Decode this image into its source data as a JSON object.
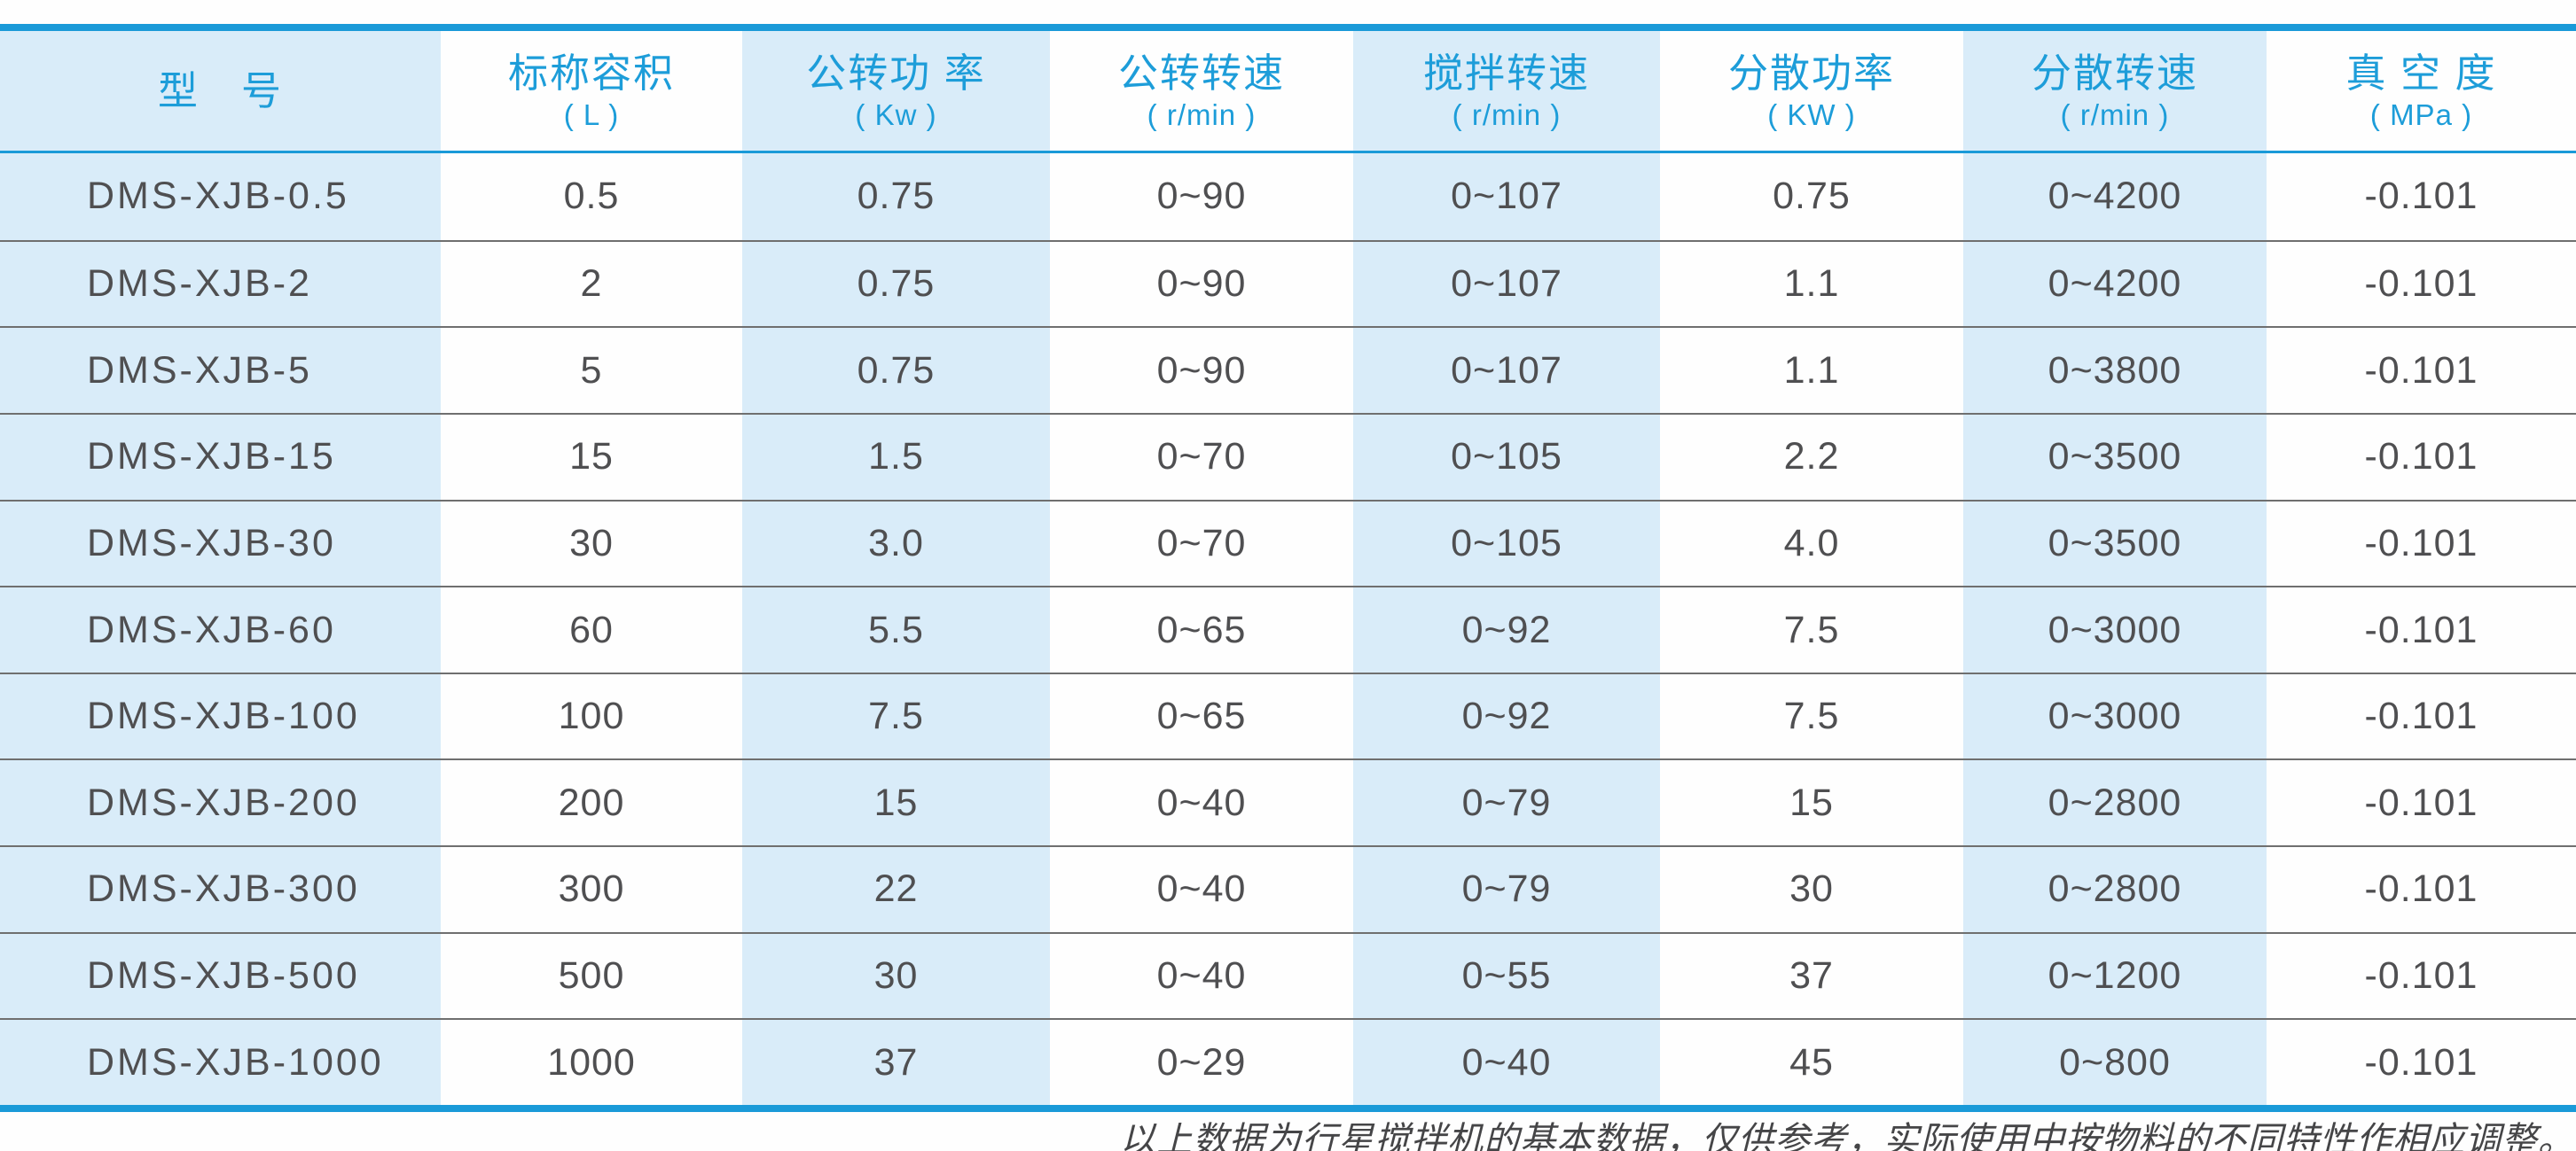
{
  "colors": {
    "accent_blue": "#1a9ad8",
    "header_text_blue": "#1d9dd9",
    "stripe_light_blue": "#d9ecf9",
    "body_text": "#4f4f51",
    "row_separator": "#6f6f6f",
    "footer_text": "#454547",
    "page_background": "#fefefe"
  },
  "table": {
    "columns": [
      {
        "title": "型　号",
        "unit": ""
      },
      {
        "title": "标称容积",
        "unit": "( L )"
      },
      {
        "title": "公转功 率",
        "unit": "( Kw )"
      },
      {
        "title": "公转转速",
        "unit": "( r/min )"
      },
      {
        "title": "搅拌转速",
        "unit": "( r/min )"
      },
      {
        "title": "分散功率",
        "unit": "( KW )"
      },
      {
        "title": "分散转速",
        "unit": "( r/min )"
      },
      {
        "title": "真 空 度",
        "unit": "( MPa )"
      }
    ],
    "rows": [
      [
        "DMS-XJB-0.5",
        "0.5",
        "0.75",
        "0~90",
        "0~107",
        "0.75",
        "0~4200",
        "-0.101"
      ],
      [
        "DMS-XJB-2",
        "2",
        "0.75",
        "0~90",
        "0~107",
        "1.1",
        "0~4200",
        "-0.101"
      ],
      [
        "DMS-XJB-5",
        "5",
        "0.75",
        "0~90",
        "0~107",
        "1.1",
        "0~3800",
        "-0.101"
      ],
      [
        "DMS-XJB-15",
        "15",
        "1.5",
        "0~70",
        "0~105",
        "2.2",
        "0~3500",
        "-0.101"
      ],
      [
        "DMS-XJB-30",
        "30",
        "3.0",
        "0~70",
        "0~105",
        "4.0",
        "0~3500",
        "-0.101"
      ],
      [
        "DMS-XJB-60",
        "60",
        "5.5",
        "0~65",
        "0~92",
        "7.5",
        "0~3000",
        "-0.101"
      ],
      [
        "DMS-XJB-100",
        "100",
        "7.5",
        "0~65",
        "0~92",
        "7.5",
        "0~3000",
        "-0.101"
      ],
      [
        "DMS-XJB-200",
        "200",
        "15",
        "0~40",
        "0~79",
        "15",
        "0~2800",
        "-0.101"
      ],
      [
        "DMS-XJB-300",
        "300",
        "22",
        "0~40",
        "0~79",
        "30",
        "0~2800",
        "-0.101"
      ],
      [
        "DMS-XJB-500",
        "500",
        "30",
        "0~40",
        "0~55",
        "37",
        "0~1200",
        "-0.101"
      ],
      [
        "DMS-XJB-1000",
        "1000",
        "37",
        "0~29",
        "0~40",
        "45",
        "0~800",
        "-0.101"
      ]
    ]
  },
  "footer": {
    "note": "以上数据为行星搅拌机的基本数据，仅供参考，实际使用中按物料的不同特性作相应调整。"
  }
}
